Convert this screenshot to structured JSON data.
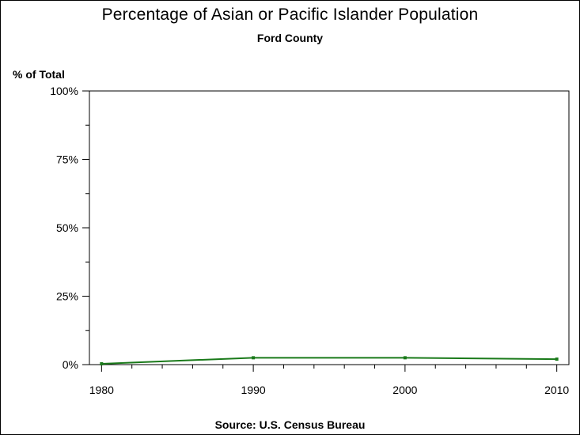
{
  "chart_data": {
    "type": "line",
    "title": "Percentage of Asian or Pacific Islander Population",
    "subtitle": "Ford County",
    "ylabel": "% of Total",
    "xlabel": "",
    "source": "Source: U.S. Census Bureau",
    "x": [
      1980,
      1990,
      2000,
      2010
    ],
    "series": [
      {
        "values": [
          0.3,
          2.5,
          2.5,
          2.0
        ]
      }
    ],
    "xlim": [
      1979.2,
      2010.8
    ],
    "ylim": [
      0,
      100
    ],
    "yticks": [
      0,
      25,
      50,
      75,
      100
    ],
    "ytick_labels": [
      "0%",
      "25%",
      "50%",
      "75%",
      "100%"
    ],
    "xticks": [
      1980,
      1990,
      2000,
      2010
    ],
    "xtick_labels": [
      "1980",
      "1990",
      "2000",
      "2010"
    ],
    "grid": false,
    "line_color": "#1a7a1a"
  }
}
